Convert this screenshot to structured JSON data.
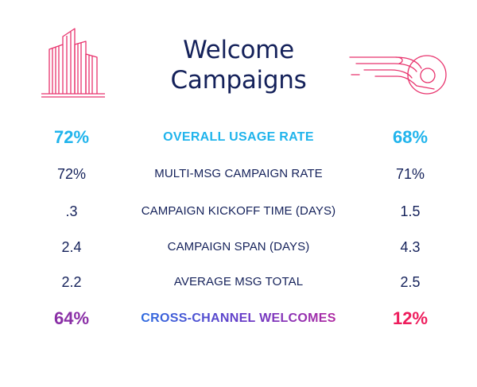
{
  "title": {
    "line1": "Welcome",
    "line2": "Campaigns"
  },
  "icons": {
    "left": "buildings-icon",
    "right": "speed-wing-icon",
    "accent": "#e8336d"
  },
  "colors": {
    "navy": "#14215a",
    "blue": "#20b4ec",
    "purple": "#8a2fa6",
    "red": "#ee1c5c"
  },
  "rows": [
    {
      "left": "72%",
      "label": "OVERALL USAGE RATE",
      "right": "68%"
    },
    {
      "left": "72%",
      "label": "MULTI-MSG CAMPAIGN RATE",
      "right": "71%"
    },
    {
      "left": ".3",
      "label": "CAMPAIGN KICKOFF TIME (DAYS)",
      "right": "1.5"
    },
    {
      "left": "2.4",
      "label": "CAMPAIGN SPAN (DAYS)",
      "right": "4.3"
    },
    {
      "left": "2.2",
      "label": "AVERAGE MSG TOTAL",
      "right": "2.5"
    },
    {
      "left": "64%",
      "label": "CROSS-CHANNEL WELCOMES",
      "right": "12%"
    }
  ]
}
